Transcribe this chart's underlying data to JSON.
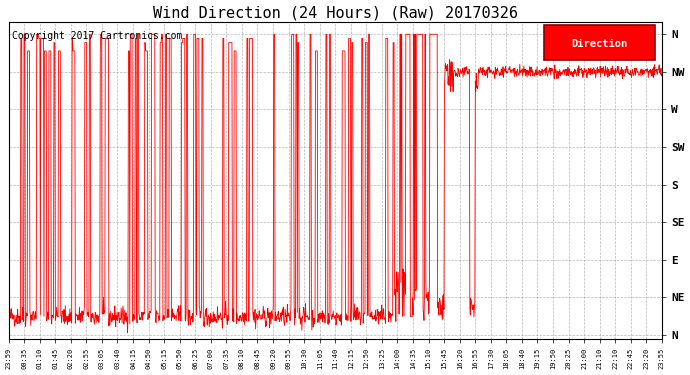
{
  "title": "Wind Direction (24 Hours) (Raw) 20170326",
  "copyright": "Copyright 2017 Cartronics.com",
  "legend_label": "Direction",
  "line_color": "#ff0000",
  "bg_color": "#ffffff",
  "plot_bg": "#ffffff",
  "grid_color": "#888888",
  "ytick_labels": [
    "N",
    "NE",
    "E",
    "SE",
    "S",
    "SW",
    "W",
    "NW",
    "N"
  ],
  "ytick_values": [
    0,
    45,
    90,
    135,
    180,
    225,
    270,
    315,
    360
  ],
  "ylim": [
    -5,
    375
  ],
  "xtick_labels": [
    "23:59",
    "00:35",
    "01:10",
    "01:45",
    "02:20",
    "02:55",
    "03:05",
    "03:40",
    "04:15",
    "04:50",
    "05:15",
    "05:50",
    "06:25",
    "07:00",
    "07:35",
    "08:10",
    "08:45",
    "09:20",
    "09:55",
    "10:30",
    "11:05",
    "11:40",
    "12:15",
    "12:50",
    "13:25",
    "14:00",
    "14:35",
    "15:10",
    "15:45",
    "16:20",
    "16:55",
    "17:30",
    "18:05",
    "18:40",
    "19:15",
    "19:50",
    "20:25",
    "21:00",
    "21:10",
    "22:10",
    "22:45",
    "23:20",
    "23:55"
  ],
  "title_fontsize": 11,
  "ylabel_fontsize": 8,
  "copyright_fontsize": 7,
  "xtick_fontsize": 5
}
